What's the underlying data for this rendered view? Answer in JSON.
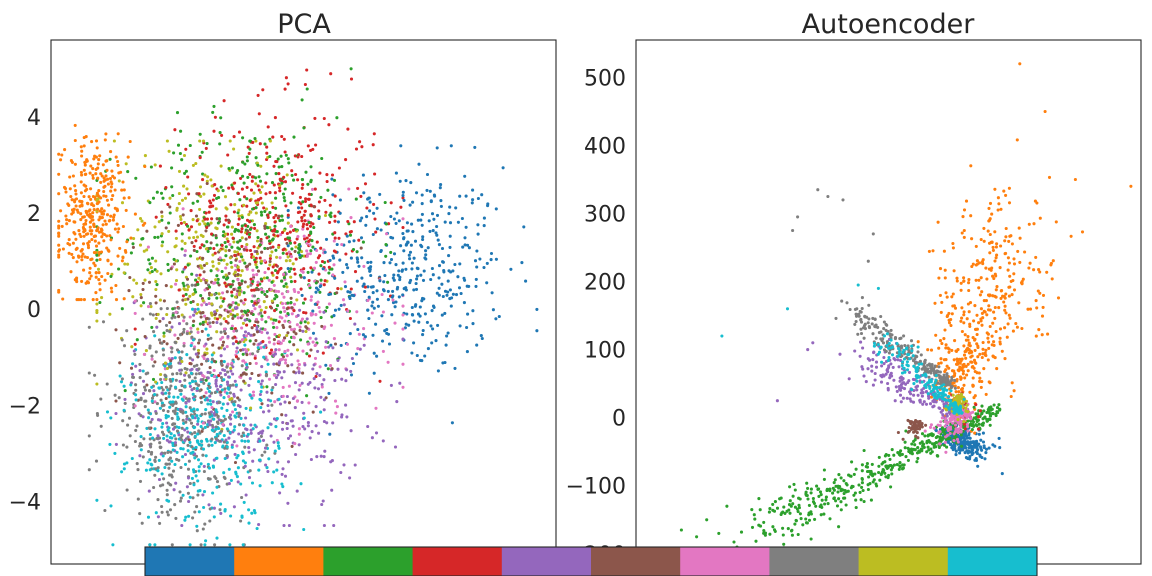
{
  "chart_data": [
    {
      "type": "scatter",
      "title": "PCA",
      "xlabel": "",
      "ylabel": "",
      "xlim": [
        -6.2,
        7.0
      ],
      "ylim": [
        -5.3,
        5.6
      ],
      "yticks": [
        4,
        2,
        0,
        -2,
        -4
      ],
      "ytick_labels": [
        "4",
        "2",
        "0",
        "−2",
        "−4"
      ],
      "grid": false,
      "legend": "none",
      "clusters": [
        {
          "class": 0,
          "n": 420,
          "cx": 3.1,
          "cy": 0.8,
          "sx": 1.3,
          "sy": 1.1,
          "xmin": 0.0,
          "xmax": 6.5,
          "ymin": -2.6,
          "ymax": 3.4
        },
        {
          "class": 1,
          "n": 360,
          "cx": -5.1,
          "cy": 1.9,
          "sx": 0.45,
          "sy": 0.8,
          "xmin": -6.0,
          "xmax": -3.4,
          "ymin": 0.2,
          "ymax": 3.9
        },
        {
          "class": 2,
          "n": 420,
          "cx": -1.0,
          "cy": 1.4,
          "sx": 1.6,
          "sy": 1.3,
          "xmin": -5.0,
          "xmax": 3.0,
          "ymin": -1.8,
          "ymax": 5.0
        },
        {
          "class": 3,
          "n": 400,
          "cx": -0.3,
          "cy": 1.8,
          "sx": 1.3,
          "sy": 1.2,
          "xmin": -4.0,
          "xmax": 3.0,
          "ymin": -1.5,
          "ymax": 5.1
        },
        {
          "class": 4,
          "n": 380,
          "cx": -1.0,
          "cy": -1.9,
          "sx": 1.5,
          "sy": 1.1,
          "xmin": -4.5,
          "xmax": 3.0,
          "ymin": -4.5,
          "ymax": 1.2
        },
        {
          "class": 5,
          "n": 240,
          "cx": -1.5,
          "cy": 0.0,
          "sx": 1.4,
          "sy": 1.1,
          "xmin": -4.5,
          "xmax": 2.5,
          "ymin": -3.2,
          "ymax": 3.0
        },
        {
          "class": 6,
          "n": 320,
          "cx": -0.4,
          "cy": -0.3,
          "sx": 1.5,
          "sy": 1.0,
          "xmin": -4.0,
          "xmax": 3.0,
          "ymin": -3.8,
          "ymax": 2.5
        },
        {
          "class": 7,
          "n": 440,
          "cx": -2.8,
          "cy": -2.2,
          "sx": 1.0,
          "sy": 1.1,
          "xmin": -5.2,
          "xmax": 0.5,
          "ymin": -4.9,
          "ymax": 0.5
        },
        {
          "class": 8,
          "n": 330,
          "cx": -2.0,
          "cy": 1.0,
          "sx": 1.3,
          "sy": 1.1,
          "xmin": -5.0,
          "xmax": 2.5,
          "ymin": -2.5,
          "ymax": 3.5
        },
        {
          "class": 9,
          "n": 380,
          "cx": -2.2,
          "cy": -2.5,
          "sx": 1.0,
          "sy": 1.0,
          "xmin": -5.0,
          "xmax": 1.0,
          "ymin": -4.9,
          "ymax": 0.0
        }
      ]
    },
    {
      "type": "scatter",
      "title": "Autoencoder",
      "xlabel": "",
      "ylabel": "",
      "xlim": [
        -200,
        300
      ],
      "ylim": [
        -215,
        555
      ],
      "yticks": [
        500,
        400,
        300,
        200,
        100,
        0,
        -100,
        -200
      ],
      "ytick_labels": [
        "500",
        "400",
        "300",
        "200",
        "100",
        "0",
        "−100",
        "−200"
      ],
      "grid": false,
      "legend": "none",
      "clusters": [
        {
          "class": 0,
          "n": 240,
          "x0": 110,
          "y0": -20,
          "x1": 140,
          "y1": -50,
          "jx": 10,
          "jy": 10
        },
        {
          "class": 1,
          "n": 460,
          "x0": 115,
          "y0": 40,
          "x1": 170,
          "y1": 260,
          "jx": 22,
          "jy": 45,
          "extras": [
            [
              180,
              520
            ],
            [
              205,
              450
            ],
            [
              235,
              350
            ],
            [
              290,
              340
            ],
            [
              150,
              290
            ],
            [
              125,
              265
            ]
          ]
        },
        {
          "class": 2,
          "n": 460,
          "x0": 155,
          "y0": 10,
          "x1": -80,
          "y1": -170,
          "jx": 10,
          "jy": 12,
          "extras": [
            [
              -155,
              -165
            ],
            [
              -140,
              -175
            ],
            [
              -130,
              -150
            ],
            [
              -110,
              -130
            ],
            [
              -118,
              -170
            ],
            [
              -100,
              -190
            ]
          ]
        },
        {
          "class": 3,
          "n": 80,
          "x0": 115,
          "y0": 20,
          "x1": 130,
          "y1": 5,
          "jx": 6,
          "jy": 8
        },
        {
          "class": 4,
          "n": 200,
          "x0": 120,
          "y0": 5,
          "x1": 25,
          "y1": 90,
          "jx": 10,
          "jy": 12,
          "extras": [
            [
              -60,
              25
            ],
            [
              -30,
              100
            ],
            [
              -25,
              110
            ]
          ]
        },
        {
          "class": 5,
          "n": 50,
          "x0": 80,
          "y0": -10,
          "x1": 70,
          "y1": -20,
          "jx": 5,
          "jy": 6
        },
        {
          "class": 6,
          "n": 130,
          "x0": 125,
          "y0": 10,
          "x1": 105,
          "y1": -25,
          "jx": 6,
          "jy": 8
        },
        {
          "class": 7,
          "n": 230,
          "x0": 110,
          "y0": 50,
          "x1": 10,
          "y1": 160,
          "jx": 6,
          "jy": 8,
          "extras": [
            [
              -20,
              335
            ],
            [
              -40,
              295
            ],
            [
              -45,
              275
            ],
            [
              -10,
              325
            ],
            [
              5,
              320
            ],
            [
              35,
              270
            ],
            [
              30,
              230
            ]
          ]
        },
        {
          "class": 8,
          "n": 70,
          "x0": 120,
          "y0": 30,
          "x1": 118,
          "y1": 10,
          "jx": 5,
          "jy": 5
        },
        {
          "class": 9,
          "n": 170,
          "x0": 120,
          "y0": 10,
          "x1": 50,
          "y1": 110,
          "jx": 6,
          "jy": 7,
          "extras": [
            [
              -115,
              120
            ],
            [
              -50,
              160
            ],
            [
              20,
              195
            ],
            [
              40,
              190
            ]
          ]
        }
      ]
    }
  ],
  "colorbar": {
    "colors": [
      "#1f77b4",
      "#ff7f0e",
      "#2ca02c",
      "#d62728",
      "#9467bd",
      "#8c564b",
      "#e377c2",
      "#7f7f7f",
      "#bcbd22",
      "#17becf"
    ]
  }
}
